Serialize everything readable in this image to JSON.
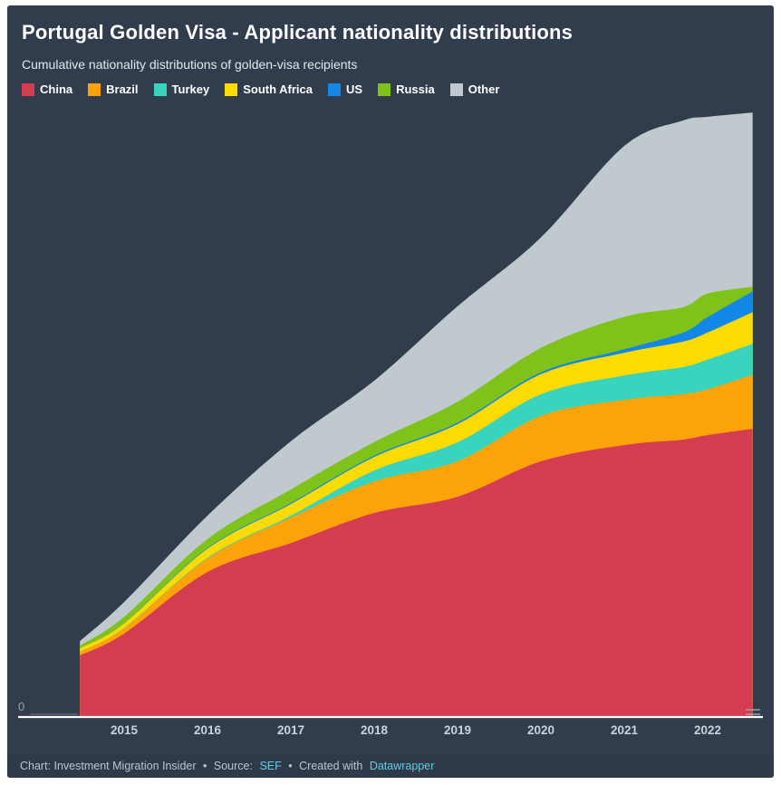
{
  "header": {
    "title": "Portugal Golden Visa - Applicant nationality distributions",
    "subtitle": "Cumulative nationality distributions of golden-visa recipients"
  },
  "axis": {
    "zero_label": "0"
  },
  "footer": {
    "credit": "Chart: Investment Migration Insider",
    "separator": "•",
    "source_label": "Source:",
    "source_link": "SEF",
    "created_label": "Created with",
    "tool_link": "Datawrapper"
  },
  "colors": {
    "background": "#313c4c",
    "footer_background": "#2e3a49",
    "baseline": "#ffffff",
    "link": "#66c9de"
  },
  "chart_data": {
    "type": "area",
    "stacked": true,
    "title": "Portugal Golden Visa - Applicant nationality distributions",
    "subtitle": "Cumulative nationality distributions of golden-visa recipients",
    "xlabel": "",
    "ylabel": "",
    "grid": false,
    "legend_position": "top",
    "x_unit": "year",
    "x": [
      2014.47,
      2015,
      2016,
      2017,
      2018,
      2019,
      2020,
      2021,
      2021.7,
      2022,
      2022.54
    ],
    "xticks": [
      "2015",
      "2016",
      "2017",
      "2018",
      "2019",
      "2020",
      "2021",
      "2022"
    ],
    "ylim": [
      0,
      11200
    ],
    "baseline_value": 0,
    "series": [
      {
        "name": "China",
        "color": "#d43d51",
        "values": [
          1140,
          1540,
          2680,
          3215,
          3770,
          4070,
          4725,
          5025,
          5125,
          5210,
          5325
        ]
      },
      {
        "name": "Brazil",
        "color": "#fca309",
        "values": [
          65,
          100,
          250,
          470,
          585,
          655,
          840,
          835,
          840,
          845,
          1000
        ]
      },
      {
        "name": "Turkey",
        "color": "#38d4be",
        "values": [
          0,
          5,
          15,
          35,
          200,
          350,
          400,
          450,
          500,
          550,
          570
        ]
      },
      {
        "name": "South Africa",
        "color": "#fcdb00",
        "values": [
          65,
          85,
          165,
          215,
          250,
          335,
          370,
          420,
          470,
          500,
          585
        ]
      },
      {
        "name": "US",
        "color": "#1287e8",
        "values": [
          0,
          5,
          15,
          20,
          25,
          30,
          35,
          65,
          165,
          285,
          385
        ]
      },
      {
        "name": "Russia",
        "color": "#7fc31a",
        "values": [
          50,
          115,
          165,
          250,
          250,
          385,
          450,
          600,
          470,
          435,
          85
        ]
      },
      {
        "name": "Other",
        "color": "#bfc9ce",
        "values": [
          85,
          275,
          430,
          890,
          1135,
          1765,
          2040,
          3160,
          3450,
          3265,
          3220
        ]
      }
    ]
  }
}
